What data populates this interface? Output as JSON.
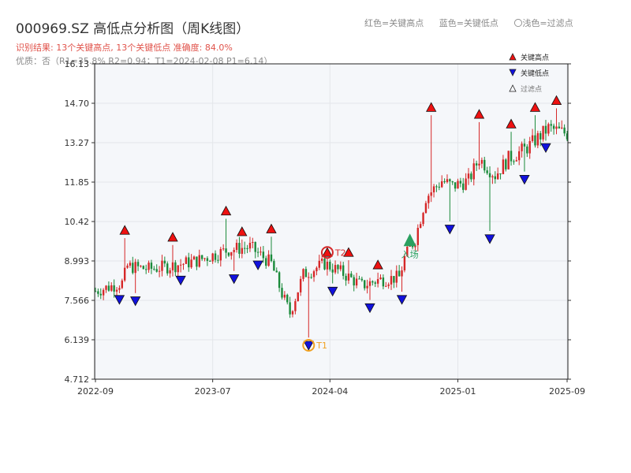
{
  "title": "000969.SZ 高低点分析图（周K线图）",
  "result_line": "识别结果: 13个关键高点, 13个关键低点   准确度: 84.0%",
  "quality_line": "优质：否（R1=35.8%  R2=0.94；T1=2024-02-08 P1=6.14）",
  "top_legend": {
    "red": "红色=关键高点",
    "blue": "蓝色=关键低点",
    "light": "〇浅色=过滤点"
  },
  "colors": {
    "up": "#d62728",
    "down": "#1a8a3a",
    "high_marker": "#ee1111",
    "low_marker": "#1111dd",
    "special": "#f0a020",
    "entry": "#2aa060",
    "plot_bg": "#f5f7fa",
    "grid": "#e4e6ea"
  },
  "chart_data": {
    "type": "candlestick",
    "x_axis": {
      "ticks": [
        "2022-09",
        "2023-07",
        "2024-04",
        "2025-01",
        "2025-09"
      ],
      "tick_positions_weeks": [
        0,
        44,
        88,
        136,
        177
      ],
      "total_weeks": 177
    },
    "y_axis": {
      "ticks": [
        "4.712",
        "6.139",
        "7.566",
        "8.993",
        "10.42",
        "11.85",
        "13.27",
        "14.70",
        "16.13"
      ],
      "range": [
        4.712,
        16.13
      ]
    },
    "price_path": [
      {
        "w": 0,
        "p": 7.9
      },
      {
        "w": 10,
        "p": 8.2
      },
      {
        "w": 12,
        "p": 8.8
      },
      {
        "w": 20,
        "p": 8.7
      },
      {
        "w": 28,
        "p": 8.8
      },
      {
        "w": 38,
        "p": 9.0
      },
      {
        "w": 50,
        "p": 9.4
      },
      {
        "w": 58,
        "p": 9.5
      },
      {
        "w": 66,
        "p": 8.9
      },
      {
        "w": 70,
        "p": 7.8
      },
      {
        "w": 73,
        "p": 7.1
      },
      {
        "w": 78,
        "p": 8.5
      },
      {
        "w": 86,
        "p": 8.9
      },
      {
        "w": 92,
        "p": 8.6
      },
      {
        "w": 100,
        "p": 8.1
      },
      {
        "w": 106,
        "p": 8.3
      },
      {
        "w": 114,
        "p": 8.4
      },
      {
        "w": 116,
        "p": 9.1
      },
      {
        "w": 120,
        "p": 9.8
      },
      {
        "w": 124,
        "p": 11.3
      },
      {
        "w": 130,
        "p": 11.9
      },
      {
        "w": 134,
        "p": 11.7
      },
      {
        "w": 140,
        "p": 11.9
      },
      {
        "w": 144,
        "p": 12.7
      },
      {
        "w": 150,
        "p": 12.1
      },
      {
        "w": 155,
        "p": 12.7
      },
      {
        "w": 162,
        "p": 13.1
      },
      {
        "w": 170,
        "p": 13.8
      },
      {
        "w": 177,
        "p": 13.6
      }
    ],
    "key_highs": [
      {
        "w": 11,
        "price": 9.9
      },
      {
        "w": 29,
        "price": 9.65
      },
      {
        "w": 49,
        "price": 10.6
      },
      {
        "w": 55,
        "price": 9.85
      },
      {
        "w": 66,
        "price": 9.95
      },
      {
        "w": 95,
        "price": 9.1
      },
      {
        "w": 106,
        "price": 8.65
      },
      {
        "w": 126,
        "price": 14.35
      },
      {
        "w": 144,
        "price": 14.1
      },
      {
        "w": 156,
        "price": 13.75
      },
      {
        "w": 165,
        "price": 14.35
      },
      {
        "w": 173,
        "price": 14.6
      },
      {
        "w": 87,
        "price": 9.1
      }
    ],
    "key_lows": [
      {
        "w": 9,
        "price": 7.8
      },
      {
        "w": 15,
        "price": 7.75
      },
      {
        "w": 32,
        "price": 8.5
      },
      {
        "w": 52,
        "price": 8.55
      },
      {
        "w": 61,
        "price": 9.05
      },
      {
        "w": 80,
        "price": 6.14
      },
      {
        "w": 89,
        "price": 8.1
      },
      {
        "w": 103,
        "price": 7.5
      },
      {
        "w": 115,
        "price": 7.8
      },
      {
        "w": 133,
        "price": 10.35
      },
      {
        "w": 148,
        "price": 10.0
      },
      {
        "w": 161,
        "price": 12.15
      },
      {
        "w": 169,
        "price": 13.3
      }
    ],
    "special_points": [
      {
        "label": "T1",
        "w": 80,
        "price": 6.14,
        "style": "low"
      },
      {
        "label": "T2",
        "w": 87,
        "price": 9.1,
        "style": "high"
      }
    ],
    "entry_point": {
      "label": "入场",
      "w": 118,
      "price": 9.7
    },
    "legend": [
      {
        "label": "关键高点",
        "shape": "triangle-up",
        "color": "#ee1111"
      },
      {
        "label": "关键低点",
        "shape": "triangle-down",
        "color": "#1111dd"
      },
      {
        "label": "过滤点",
        "shape": "triangle-up-outline",
        "color": "#666666"
      }
    ]
  }
}
